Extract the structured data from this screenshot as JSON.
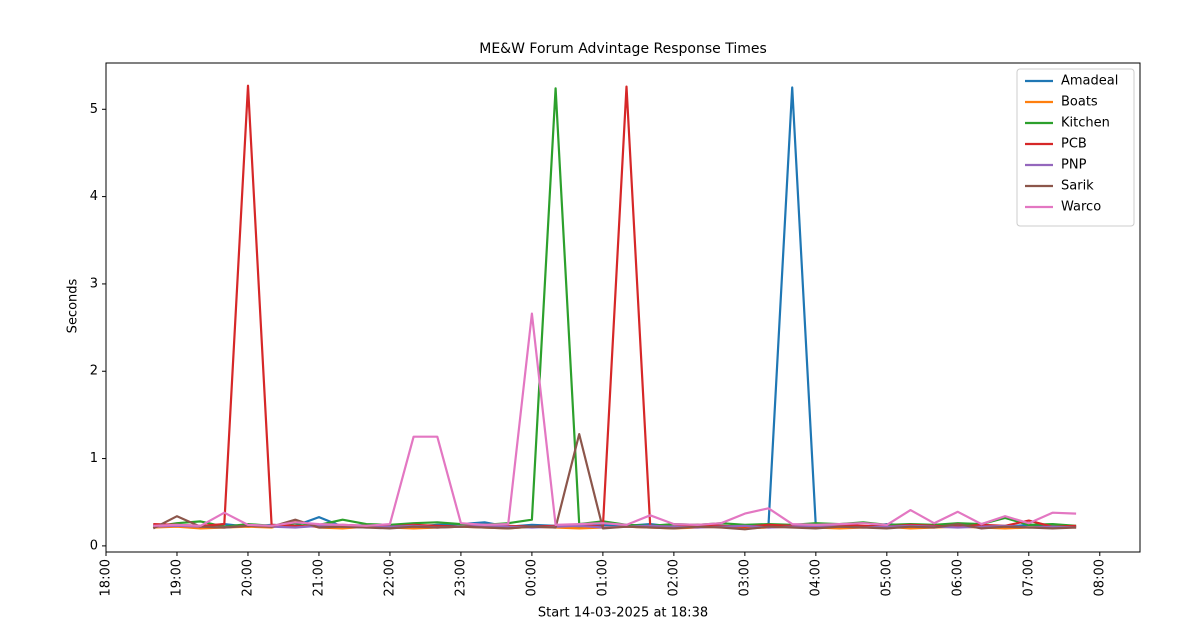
{
  "chart_data": {
    "type": "line",
    "title": "ME&W Forum Advintage Response Times",
    "x_label": "Start 14-03-2025 at 18:38",
    "y_label": "Seconds",
    "x": [
      "18:40",
      "19:00",
      "19:20",
      "19:40",
      "20:00",
      "20:20",
      "20:40",
      "21:00",
      "21:20",
      "21:40",
      "22:00",
      "22:20",
      "22:40",
      "23:00",
      "23:20",
      "23:40",
      "00:00",
      "00:20",
      "00:40",
      "01:00",
      "01:20",
      "01:40",
      "02:00",
      "02:20",
      "02:40",
      "03:00",
      "03:20",
      "03:40",
      "04:00",
      "04:20",
      "04:40",
      "05:00",
      "05:20",
      "05:40",
      "06:00",
      "06:20",
      "06:40",
      "07:00",
      "07:20",
      "07:40"
    ],
    "series": [
      {
        "name": "Amadeal",
        "color": "#1f77b4",
        "values": [
          0.24,
          0.23,
          0.22,
          0.25,
          0.22,
          0.24,
          0.23,
          0.33,
          0.22,
          0.24,
          0.23,
          0.22,
          0.24,
          0.25,
          0.27,
          0.22,
          0.24,
          0.23,
          0.22,
          0.24,
          0.23,
          0.25,
          0.22,
          0.24,
          0.23,
          0.22,
          0.24,
          5.25,
          0.23,
          0.24,
          0.22,
          0.25,
          0.23,
          0.22,
          0.24,
          0.23,
          0.22,
          0.24,
          0.23,
          0.22
        ]
      },
      {
        "name": "Boats",
        "color": "#ff7f0e",
        "values": [
          0.21,
          0.22,
          0.2,
          0.21,
          0.22,
          0.21,
          0.28,
          0.21,
          0.2,
          0.22,
          0.21,
          0.2,
          0.21,
          0.22,
          0.21,
          0.2,
          0.22,
          0.21,
          0.2,
          0.21,
          0.22,
          0.21,
          0.2,
          0.21,
          0.22,
          0.2,
          0.21,
          0.22,
          0.21,
          0.2,
          0.21,
          0.22,
          0.2,
          0.21,
          0.22,
          0.21,
          0.2,
          0.21,
          0.22,
          0.21
        ]
      },
      {
        "name": "Kitchen",
        "color": "#2ca02c",
        "values": [
          0.22,
          0.26,
          0.28,
          0.22,
          0.25,
          0.23,
          0.26,
          0.24,
          0.3,
          0.25,
          0.24,
          0.26,
          0.27,
          0.25,
          0.24,
          0.26,
          0.3,
          5.24,
          0.25,
          0.28,
          0.24,
          0.23,
          0.25,
          0.24,
          0.26,
          0.24,
          0.25,
          0.24,
          0.26,
          0.25,
          0.27,
          0.24,
          0.25,
          0.24,
          0.26,
          0.25,
          0.32,
          0.24,
          0.25,
          0.23
        ]
      },
      {
        "name": "PCB",
        "color": "#d62728",
        "values": [
          0.25,
          0.24,
          0.23,
          0.25,
          5.27,
          0.24,
          0.23,
          0.22,
          0.24,
          0.23,
          0.22,
          0.24,
          0.23,
          0.22,
          0.24,
          0.23,
          0.22,
          0.23,
          0.24,
          0.22,
          5.26,
          0.23,
          0.22,
          0.24,
          0.23,
          0.22,
          0.24,
          0.23,
          0.22,
          0.24,
          0.23,
          0.22,
          0.24,
          0.23,
          0.22,
          0.24,
          0.23,
          0.29,
          0.22,
          0.23
        ]
      },
      {
        "name": "PNP",
        "color": "#9467bd",
        "values": [
          0.22,
          0.23,
          0.22,
          0.21,
          0.23,
          0.22,
          0.21,
          0.23,
          0.22,
          0.21,
          0.22,
          0.23,
          0.21,
          0.22,
          0.23,
          0.22,
          0.21,
          0.22,
          0.23,
          0.21,
          0.22,
          0.23,
          0.22,
          0.21,
          0.22,
          0.23,
          0.21,
          0.22,
          0.23,
          0.22,
          0.21,
          0.22,
          0.23,
          0.22,
          0.21,
          0.22,
          0.23,
          0.21,
          0.22,
          0.21
        ]
      },
      {
        "name": "Sarik",
        "color": "#8c564b",
        "values": [
          0.2,
          0.34,
          0.22,
          0.21,
          0.23,
          0.22,
          0.3,
          0.21,
          0.22,
          0.21,
          0.2,
          0.22,
          0.21,
          0.22,
          0.21,
          0.2,
          0.22,
          0.21,
          1.28,
          0.2,
          0.22,
          0.21,
          0.2,
          0.22,
          0.21,
          0.19,
          0.22,
          0.21,
          0.2,
          0.22,
          0.21,
          0.2,
          0.22,
          0.21,
          0.25,
          0.2,
          0.22,
          0.21,
          0.2,
          0.21
        ]
      },
      {
        "name": "Warco",
        "color": "#e377c2",
        "values": [
          0.23,
          0.24,
          0.23,
          0.38,
          0.24,
          0.23,
          0.27,
          0.25,
          0.24,
          0.23,
          0.25,
          1.25,
          1.25,
          0.26,
          0.24,
          0.25,
          2.66,
          0.24,
          0.25,
          0.26,
          0.24,
          0.35,
          0.25,
          0.24,
          0.26,
          0.37,
          0.43,
          0.25,
          0.24,
          0.25,
          0.26,
          0.24,
          0.41,
          0.26,
          0.39,
          0.25,
          0.34,
          0.26,
          0.38,
          0.37
        ]
      }
    ],
    "xlim": [
      "18:00",
      "08:34"
    ],
    "xticks": [
      "18:00",
      "19:00",
      "20:00",
      "21:00",
      "22:00",
      "23:00",
      "00:00",
      "01:00",
      "02:00",
      "03:00",
      "04:00",
      "05:00",
      "06:00",
      "07:00",
      "08:00"
    ],
    "ylim": [
      -0.07,
      5.53
    ],
    "yticks": [
      0,
      1,
      2,
      3,
      4,
      5
    ],
    "grid": false,
    "legend": "upper right"
  }
}
